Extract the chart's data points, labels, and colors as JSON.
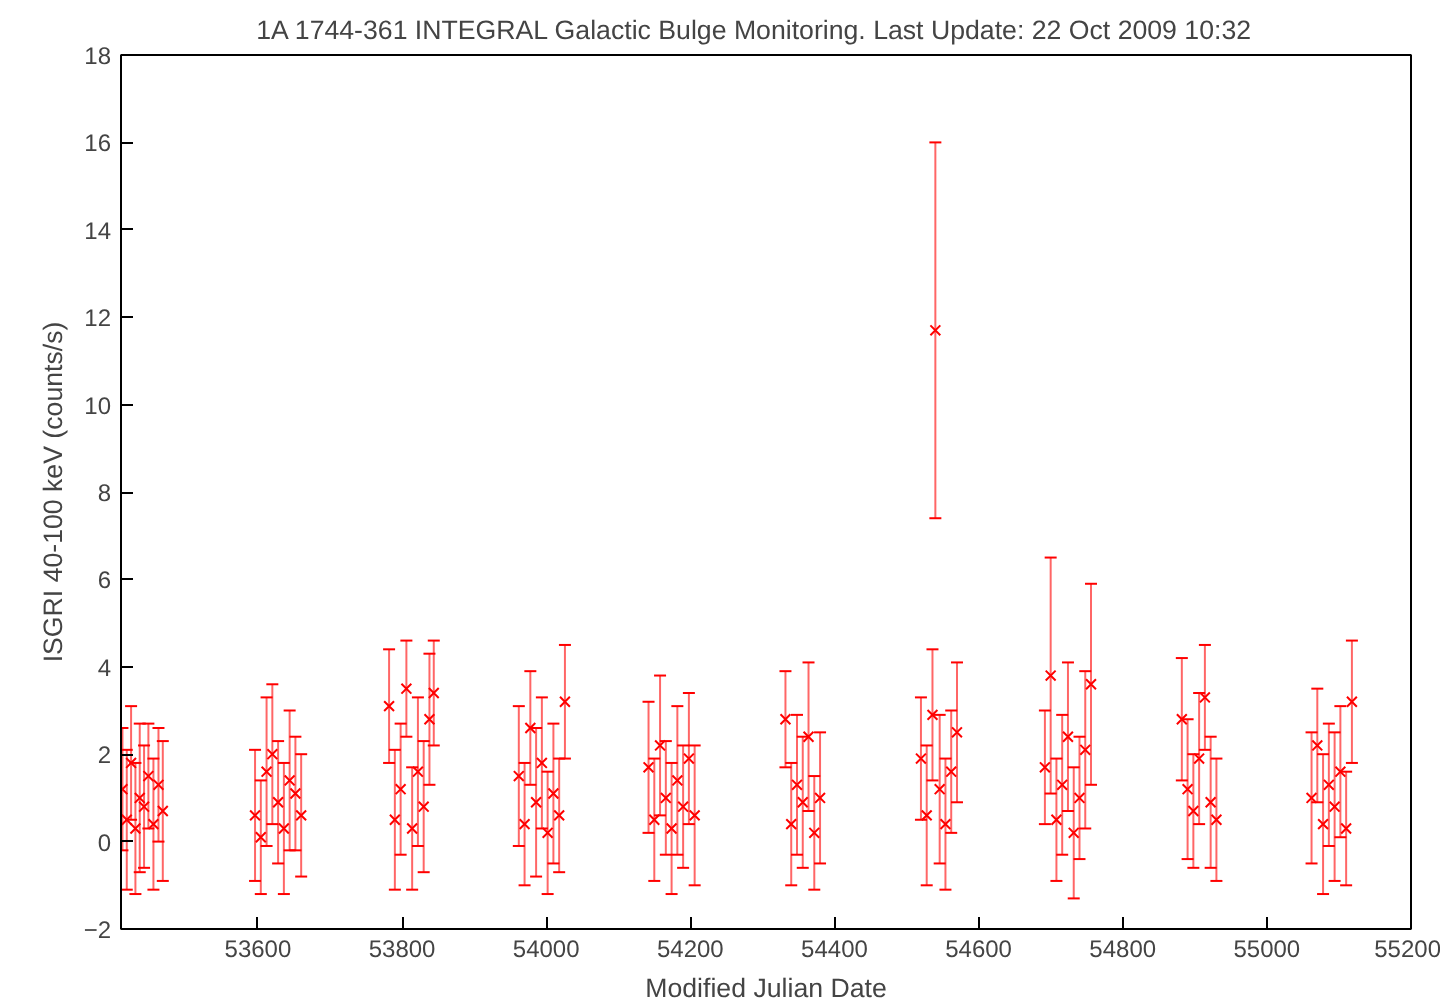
{
  "chart_data": {
    "type": "scatter",
    "title": "1A 1744-361   INTEGRAL Galactic Bulge Monitoring.  Last Update: 22 Oct 2009 10:32",
    "xlabel": "Modified Julian Date",
    "ylabel": "ISGRI 40-100 keV (counts/s)",
    "marker": "cross",
    "grid": false,
    "xlim": [
      53410,
      55200
    ],
    "ylim": [
      -2,
      18
    ],
    "xticks": [
      53600,
      53800,
      54000,
      54200,
      54400,
      54600,
      54800,
      55000,
      55200
    ],
    "yticks": [
      -2,
      0,
      2,
      4,
      6,
      8,
      10,
      12,
      14,
      16,
      18
    ],
    "series": [
      {
        "color": "#ff0000",
        "x": [
          53412,
          53418,
          53424,
          53430,
          53436,
          53442,
          53448,
          53455,
          53462,
          53468,
          53596,
          53604,
          53612,
          53620,
          53628,
          53636,
          53644,
          53652,
          53660,
          53782,
          53790,
          53798,
          53806,
          53814,
          53822,
          53830,
          53838,
          53844,
          53962,
          53970,
          53978,
          53986,
          53994,
          54002,
          54010,
          54018,
          54026,
          54142,
          54150,
          54158,
          54166,
          54174,
          54182,
          54190,
          54198,
          54206,
          54332,
          54340,
          54348,
          54356,
          54364,
          54372,
          54380,
          54520,
          54528,
          54536,
          54540,
          54546,
          54554,
          54562,
          54570,
          54692,
          54700,
          54708,
          54716,
          54724,
          54732,
          54740,
          54748,
          54756,
          54882,
          54890,
          54898,
          54906,
          54914,
          54922,
          54930,
          55062,
          55070,
          55078,
          55086,
          55094,
          55102,
          55110,
          55118
        ],
        "values": [
          1.2,
          0.5,
          1.8,
          0.3,
          1.0,
          0.8,
          1.5,
          0.4,
          1.3,
          0.7,
          0.6,
          0.1,
          1.6,
          2.0,
          0.9,
          0.3,
          1.4,
          1.1,
          0.6,
          3.1,
          0.5,
          1.2,
          3.5,
          0.3,
          1.6,
          0.8,
          2.8,
          3.4,
          1.5,
          0.4,
          2.6,
          0.9,
          1.8,
          0.2,
          1.1,
          0.6,
          3.2,
          1.7,
          0.5,
          2.2,
          1.0,
          0.3,
          1.4,
          0.8,
          1.9,
          0.6,
          2.8,
          0.4,
          1.3,
          0.9,
          2.4,
          0.2,
          1.0,
          1.9,
          0.6,
          2.9,
          11.7,
          1.2,
          0.4,
          1.6,
          2.5,
          1.7,
          3.8,
          0.5,
          1.3,
          2.4,
          0.2,
          1.0,
          2.1,
          3.6,
          2.8,
          1.2,
          0.7,
          1.9,
          3.3,
          0.9,
          0.5,
          1.0,
          2.2,
          0.4,
          1.3,
          0.8,
          1.6,
          0.3,
          3.2
        ],
        "errors": [
          1.4,
          1.6,
          1.3,
          1.5,
          1.7,
          1.4,
          1.2,
          1.5,
          1.3,
          1.6,
          1.5,
          1.3,
          1.7,
          1.6,
          1.4,
          1.5,
          1.6,
          1.3,
          1.4,
          1.3,
          1.6,
          1.5,
          1.1,
          1.4,
          1.7,
          1.5,
          1.5,
          1.2,
          1.6,
          1.4,
          1.3,
          1.7,
          1.5,
          1.4,
          1.6,
          1.3,
          1.3,
          1.5,
          1.4,
          1.6,
          1.3,
          1.5,
          1.7,
          1.4,
          1.5,
          1.6,
          1.1,
          1.4,
          1.6,
          1.5,
          1.7,
          1.3,
          1.5,
          1.4,
          1.6,
          1.5,
          4.3,
          1.7,
          1.5,
          1.4,
          1.6,
          1.3,
          2.7,
          1.4,
          1.6,
          1.7,
          1.5,
          1.4,
          1.8,
          2.3,
          1.4,
          1.6,
          1.3,
          1.5,
          1.2,
          1.5,
          1.4,
          1.5,
          1.3,
          1.6,
          1.4,
          1.7,
          1.5,
          1.3,
          1.4
        ]
      }
    ]
  }
}
